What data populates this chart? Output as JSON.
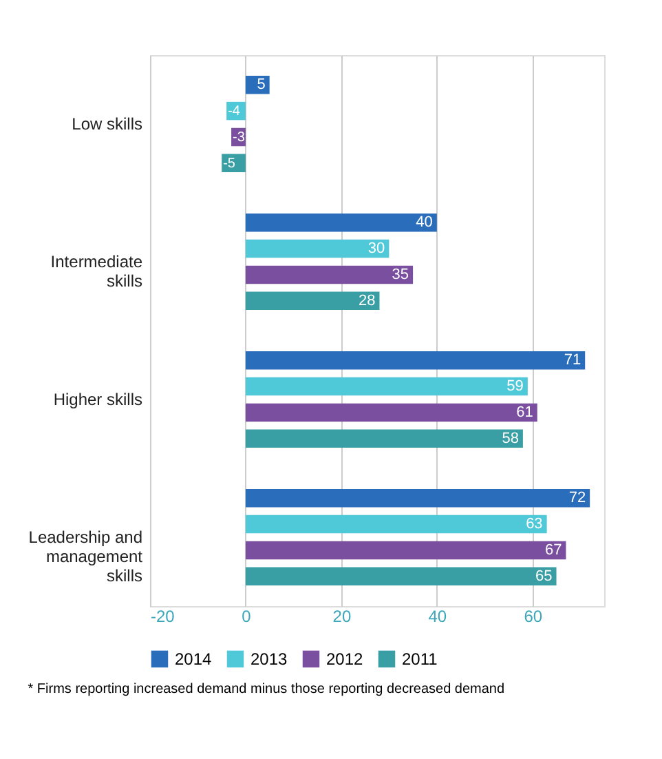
{
  "chart_data": {
    "type": "bar",
    "orientation": "horizontal",
    "categories": [
      "Low skills",
      "Intermediate skills",
      "Higher skills",
      "Leadership and management skills"
    ],
    "series": [
      {
        "name": "2014",
        "color": "#2a6ebb",
        "values": [
          5,
          40,
          71,
          72
        ]
      },
      {
        "name": "2013",
        "color": "#4fc8d8",
        "values": [
          -4,
          30,
          59,
          63
        ]
      },
      {
        "name": "2012",
        "color": "#7b4fa0",
        "values": [
          -3,
          35,
          61,
          67
        ]
      },
      {
        "name": "2011",
        "color": "#3a9ea5",
        "values": [
          -5,
          28,
          58,
          65
        ]
      }
    ],
    "xlim": [
      -20,
      75
    ],
    "xticks": [
      -20,
      0,
      20,
      40,
      60
    ],
    "grid": "x",
    "legend": "bottom",
    "data_labels": true,
    "annotations": [
      "* Firms reporting increased demand minus those reporting decreased demand"
    ]
  }
}
